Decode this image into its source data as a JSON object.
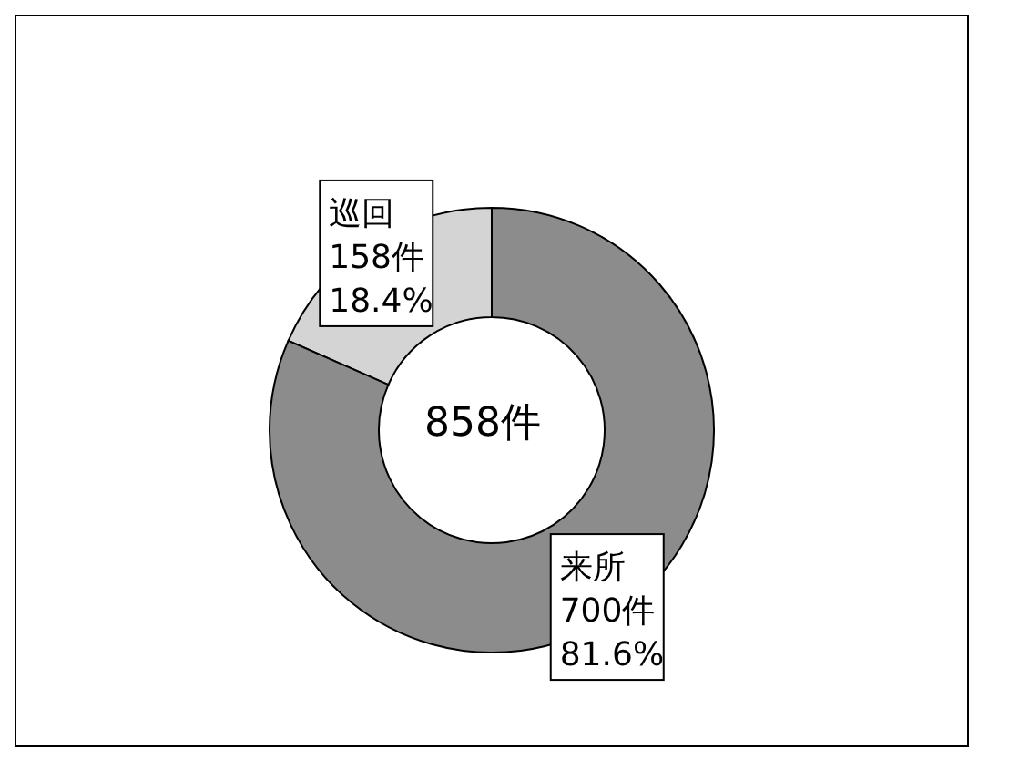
{
  "chart_data": {
    "type": "donut",
    "categories": [
      "巡回",
      "来所"
    ],
    "values": [
      158,
      700
    ],
    "colors": [
      "#d4d4d4",
      "#8c8c8c"
    ],
    "value_labels": [
      "158件\n18.4%",
      "700件\n81.6%"
    ],
    "annotations": [
      "858件"
    ]
  }
}
